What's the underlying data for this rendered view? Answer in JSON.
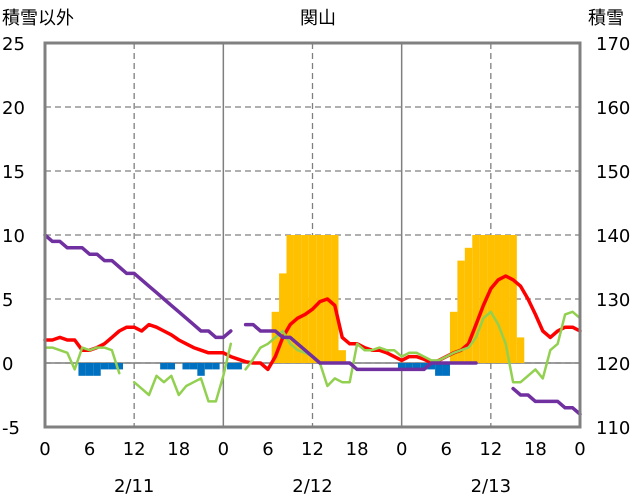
{
  "chart_data": {
    "type": "line",
    "title": "関山",
    "left_axis_label": "積雪以外",
    "right_axis_label": "積雪",
    "left_ylim": [
      -5,
      25
    ],
    "left_yticks": [
      "25",
      "20",
      "15",
      "10",
      "5",
      "0",
      "-5"
    ],
    "right_ylim": [
      110,
      170
    ],
    "right_yticks": [
      "170",
      "160",
      "150",
      "140",
      "130",
      "120",
      "110"
    ],
    "x_range_hours": [
      0,
      72
    ],
    "x_tick_labels": [
      "0",
      "6",
      "12",
      "18",
      "0",
      "6",
      "12",
      "18",
      "0",
      "6",
      "12",
      "18",
      "0"
    ],
    "date_labels": [
      "2/11",
      "2/12",
      "2/13"
    ],
    "grid": true,
    "colors": {
      "precip_bars": "#ffc000",
      "negative_bars": "#0070c0",
      "temperature": "#ff0000",
      "line_green": "#92d050",
      "snow_depth": "#7030a0"
    },
    "series": [
      {
        "kind": "bar",
        "x": [
          5,
          6,
          7,
          8,
          9,
          10,
          16,
          17,
          19,
          20,
          21,
          22,
          23,
          25,
          26,
          31,
          32,
          33,
          34,
          35,
          36,
          37,
          38,
          39,
          40,
          48,
          49,
          50,
          51,
          52,
          53,
          54,
          55,
          56,
          57,
          58,
          59,
          60,
          61,
          62,
          63,
          64
        ],
        "values": [
          -1,
          -1,
          -1,
          -0.5,
          -0.5,
          -0.5,
          -0.5,
          -0.5,
          -0.5,
          -0.5,
          -1,
          -0.5,
          -0.5,
          -0.5,
          -0.5,
          4,
          7,
          10,
          10,
          10,
          10,
          10,
          10,
          10,
          1,
          -0.5,
          -0.5,
          -0.5,
          -0.5,
          -0.5,
          -1,
          -1,
          4,
          8,
          9,
          10,
          10,
          10,
          10,
          10,
          10,
          2
        ]
      },
      {
        "kind": "line",
        "axis": "left",
        "x": [
          0,
          1,
          2,
          3,
          4,
          5,
          6,
          7,
          8,
          9,
          10,
          11,
          12,
          13,
          14,
          15,
          16,
          17,
          18,
          19,
          20,
          21,
          22,
          23,
          24,
          25,
          26,
          27,
          28,
          29,
          30,
          31,
          32,
          33,
          34,
          35,
          36,
          37,
          38,
          39,
          40,
          41,
          42,
          43,
          44,
          45,
          46,
          47,
          48,
          49,
          50,
          51,
          52,
          53,
          54,
          55,
          56,
          57,
          58,
          59,
          60,
          61,
          62,
          63,
          64,
          65,
          66,
          67,
          68,
          69,
          70,
          71,
          72
        ],
        "y": [
          1.8,
          1.8,
          2.0,
          1.8,
          1.8,
          1.0,
          1.0,
          1.2,
          1.5,
          2.0,
          2.5,
          2.8,
          2.8,
          2.5,
          3.0,
          2.8,
          2.5,
          2.2,
          1.8,
          1.5,
          1.2,
          1.0,
          0.8,
          0.8,
          0.8,
          0.5,
          0.3,
          0.1,
          0.0,
          0.0,
          -0.5,
          0.5,
          2.0,
          3.0,
          3.5,
          3.8,
          4.2,
          4.8,
          5.0,
          4.5,
          2.0,
          1.5,
          1.5,
          1.2,
          1.0,
          1.0,
          0.8,
          0.5,
          0.2,
          0.5,
          0.5,
          0.3,
          0.0,
          0.2,
          0.5,
          0.8,
          1.0,
          1.5,
          3.0,
          4.5,
          5.8,
          6.5,
          6.8,
          6.5,
          6.0,
          5.0,
          3.8,
          2.5,
          2.0,
          2.5,
          2.8,
          2.8,
          2.5
        ]
      },
      {
        "kind": "line",
        "axis": "left",
        "x": [
          0,
          1,
          2,
          3,
          4,
          5,
          6,
          7,
          8,
          9,
          10,
          11,
          12,
          13,
          14,
          15,
          16,
          17,
          18,
          19,
          20,
          21,
          22,
          23,
          24,
          25,
          26,
          27,
          28,
          29,
          30,
          31,
          32,
          33,
          34,
          35,
          36,
          37,
          38,
          39,
          40,
          41,
          42,
          43,
          44,
          45,
          46,
          47,
          48,
          49,
          50,
          51,
          52,
          53,
          54,
          55,
          56,
          57,
          58,
          59,
          60,
          61,
          62,
          63,
          64,
          65,
          66,
          67,
          68,
          69,
          70,
          71,
          72
        ],
        "y": [
          1.2,
          1.2,
          1.0,
          0.8,
          -0.5,
          1.2,
          1.0,
          1.2,
          1.2,
          1.0,
          -0.8,
          null,
          -1.5,
          -2.0,
          -2.5,
          -1.0,
          -1.5,
          -1.0,
          -2.5,
          -1.8,
          -1.5,
          -1.2,
          -3.0,
          -3.0,
          -1.0,
          1.5,
          null,
          -0.5,
          0.3,
          1.2,
          1.5,
          2.0,
          2.5,
          1.5,
          1.0,
          0.8,
          0.5,
          0.0,
          -1.8,
          -1.2,
          -1.5,
          -1.5,
          1.5,
          1.0,
          1.0,
          1.2,
          1.0,
          1.0,
          0.5,
          0.8,
          0.8,
          0.5,
          0.2,
          0.2,
          0.5,
          0.8,
          1.0,
          1.2,
          2.0,
          3.5,
          4.0,
          3.0,
          1.5,
          -1.5,
          -1.5,
          -1.0,
          -0.5,
          -1.2,
          1.0,
          1.5,
          3.8,
          4.0,
          3.5
        ]
      },
      {
        "kind": "line",
        "axis": "right",
        "x": [
          0,
          1,
          2,
          3,
          4,
          5,
          6,
          7,
          8,
          9,
          10,
          11,
          12,
          13,
          14,
          15,
          16,
          17,
          18,
          19,
          20,
          21,
          22,
          23,
          24,
          25,
          26,
          27,
          28,
          29,
          30,
          31,
          32,
          33,
          34,
          35,
          36,
          37,
          38,
          39,
          40,
          41,
          42,
          43,
          44,
          45,
          46,
          47,
          48,
          49,
          50,
          51,
          52,
          53,
          54,
          55,
          56,
          57,
          58,
          59,
          60,
          61,
          62,
          63,
          64,
          65,
          66,
          67,
          68,
          69,
          70,
          71,
          72
        ],
        "y": [
          140,
          139,
          139,
          138,
          138,
          138,
          137,
          137,
          136,
          136,
          135,
          134,
          134,
          133,
          132,
          131,
          130,
          129,
          128,
          127,
          126,
          125,
          125,
          124,
          124,
          125,
          null,
          126,
          126,
          125,
          125,
          125,
          124,
          124,
          123,
          122,
          121,
          120,
          120,
          120,
          120,
          120,
          119,
          119,
          119,
          119,
          119,
          119,
          119,
          119,
          119,
          119,
          120,
          120,
          120,
          120,
          120,
          120,
          120,
          null,
          null,
          null,
          null,
          116,
          115,
          115,
          114,
          114,
          114,
          114,
          113,
          113,
          112
        ]
      }
    ]
  }
}
